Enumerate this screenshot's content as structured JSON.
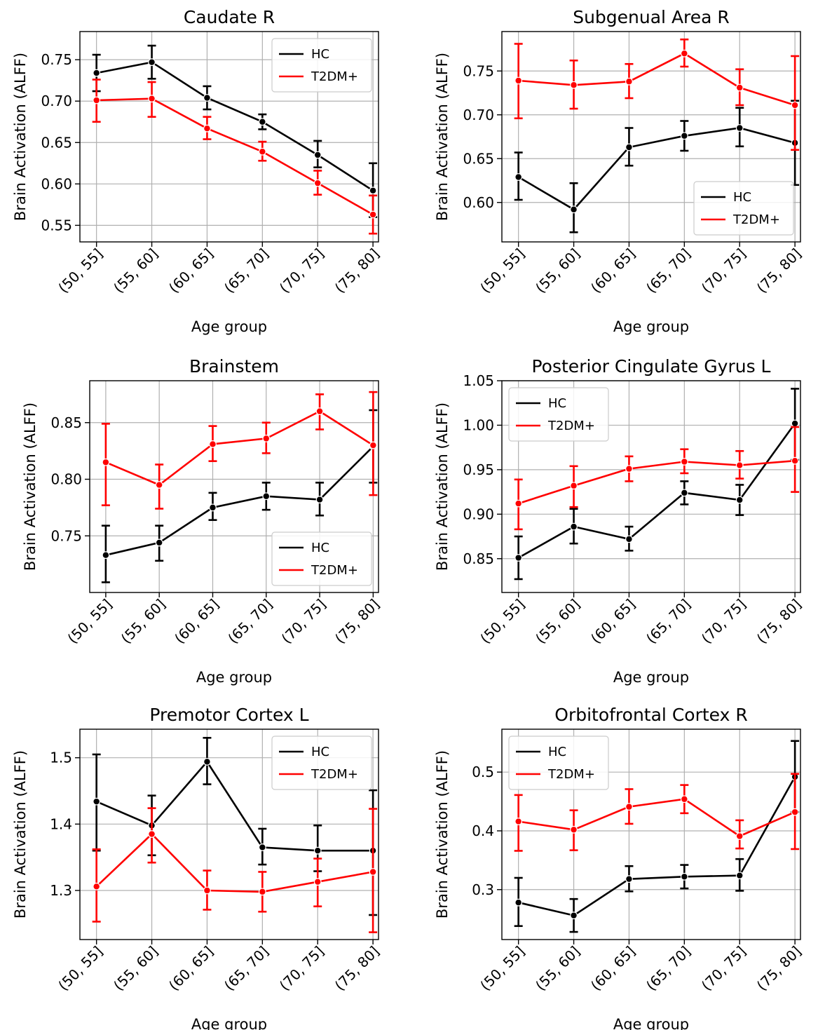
{
  "figure": {
    "xlabel": "Age group",
    "ylabel": "Brain Activation (ALFF)",
    "categories": [
      "(50, 55]",
      "(55, 60]",
      "(60, 65]",
      "(65, 70]",
      "(70, 75]",
      "(75, 80]"
    ],
    "colors": {
      "HC": "#000000",
      "T2DM+": "#ff0000"
    }
  },
  "chart_data": [
    {
      "type": "line",
      "title": "Caudate R",
      "xlabel": "Age group",
      "ylabel": "Brain Activation (ALFF)",
      "categories": [
        "(50, 55]",
        "(55, 60]",
        "(60, 65]",
        "(65, 70]",
        "(70, 75]",
        "(75, 80]"
      ],
      "ylim": [
        0.53,
        0.784
      ],
      "yticks": [
        0.55,
        0.6,
        0.65,
        0.7,
        0.75
      ],
      "ytick_labels": [
        "0.55",
        "0.60",
        "0.65",
        "0.70",
        "0.75"
      ],
      "grid": true,
      "legend_position": "top-right",
      "series": [
        {
          "name": "HC",
          "color": "#000000",
          "values": [
            0.734,
            0.747,
            0.704,
            0.675,
            0.635,
            0.592
          ],
          "err_low": [
            0.712,
            0.727,
            0.69,
            0.666,
            0.62,
            0.56
          ],
          "err_high": [
            0.756,
            0.767,
            0.718,
            0.684,
            0.652,
            0.625
          ]
        },
        {
          "name": "T2DM+",
          "color": "#ff0000",
          "values": [
            0.701,
            0.703,
            0.667,
            0.639,
            0.601,
            0.563
          ],
          "err_low": [
            0.675,
            0.681,
            0.654,
            0.628,
            0.587,
            0.54
          ],
          "err_high": [
            0.726,
            0.723,
            0.681,
            0.651,
            0.616,
            0.586
          ]
        }
      ]
    },
    {
      "type": "line",
      "title": "Subgenual Area R",
      "xlabel": "Age group",
      "ylabel": "Brain Activation (ALFF)",
      "categories": [
        "(50, 55]",
        "(55, 60]",
        "(60, 65]",
        "(65, 70]",
        "(70, 75]",
        "(75, 80]"
      ],
      "ylim": [
        0.555,
        0.795
      ],
      "yticks": [
        0.6,
        0.65,
        0.7,
        0.75
      ],
      "ytick_labels": [
        "0.60",
        "0.65",
        "0.70",
        "0.75"
      ],
      "grid": true,
      "legend_position": "lower-right",
      "series": [
        {
          "name": "HC",
          "color": "#000000",
          "values": [
            0.629,
            0.592,
            0.663,
            0.676,
            0.685,
            0.668
          ],
          "err_low": [
            0.603,
            0.566,
            0.642,
            0.659,
            0.664,
            0.62
          ],
          "err_high": [
            0.657,
            0.622,
            0.685,
            0.693,
            0.708,
            0.716
          ]
        },
        {
          "name": "T2DM+",
          "color": "#ff0000",
          "values": [
            0.739,
            0.734,
            0.738,
            0.77,
            0.731,
            0.711
          ],
          "err_low": [
            0.696,
            0.707,
            0.719,
            0.755,
            0.711,
            0.66
          ],
          "err_high": [
            0.781,
            0.762,
            0.758,
            0.786,
            0.752,
            0.767
          ]
        }
      ]
    },
    {
      "type": "line",
      "title": "Brainstem",
      "xlabel": "Age group",
      "ylabel": "Brain Activation (ALFF)",
      "categories": [
        "(50, 55]",
        "(55, 60]",
        "(60, 65]",
        "(65, 70]",
        "(70, 75]",
        "(75, 80]"
      ],
      "ylim": [
        0.7,
        0.887
      ],
      "yticks": [
        0.75,
        0.8,
        0.85
      ],
      "ytick_labels": [
        "0.75",
        "0.80",
        "0.85"
      ],
      "grid": true,
      "legend_position": "lower-right",
      "series": [
        {
          "name": "HC",
          "color": "#000000",
          "values": [
            0.733,
            0.744,
            0.775,
            0.785,
            0.782,
            0.829
          ],
          "err_low": [
            0.709,
            0.728,
            0.764,
            0.773,
            0.768,
            0.797
          ],
          "err_high": [
            0.759,
            0.759,
            0.788,
            0.797,
            0.797,
            0.861
          ]
        },
        {
          "name": "T2DM+",
          "color": "#ff0000",
          "values": [
            0.815,
            0.795,
            0.831,
            0.836,
            0.86,
            0.83
          ],
          "err_low": [
            0.777,
            0.774,
            0.816,
            0.823,
            0.844,
            0.786
          ],
          "err_high": [
            0.849,
            0.813,
            0.847,
            0.85,
            0.875,
            0.877
          ]
        }
      ]
    },
    {
      "type": "line",
      "title": "Posterior Cingulate Gyrus L",
      "xlabel": "Age group",
      "ylabel": "Brain Activation (ALFF)",
      "categories": [
        "(50, 55]",
        "(55, 60]",
        "(60, 65]",
        "(65, 70]",
        "(70, 75]",
        "(75, 80]"
      ],
      "ylim": [
        0.812,
        1.05
      ],
      "yticks": [
        0.85,
        0.9,
        0.95,
        1.0,
        1.05
      ],
      "ytick_labels": [
        "0.85",
        "0.90",
        "0.95",
        "1.00",
        "1.05"
      ],
      "grid": true,
      "legend_position": "top-left",
      "series": [
        {
          "name": "HC",
          "color": "#000000",
          "values": [
            0.851,
            0.886,
            0.872,
            0.924,
            0.916,
            1.002
          ],
          "err_low": [
            0.827,
            0.867,
            0.859,
            0.911,
            0.899,
            0.961
          ],
          "err_high": [
            0.875,
            0.906,
            0.886,
            0.937,
            0.933,
            1.041
          ]
        },
        {
          "name": "T2DM+",
          "color": "#ff0000",
          "values": [
            0.912,
            0.932,
            0.951,
            0.959,
            0.955,
            0.96
          ],
          "err_low": [
            0.883,
            0.908,
            0.937,
            0.946,
            0.94,
            0.925
          ],
          "err_high": [
            0.939,
            0.954,
            0.965,
            0.973,
            0.971,
            0.998
          ]
        }
      ]
    },
    {
      "type": "line",
      "title": "Premotor Cortex L",
      "xlabel": "Age group",
      "ylabel": "Brain Activation (ALFF)",
      "categories": [
        "(50, 55]",
        "(55, 60]",
        "(60, 65]",
        "(65, 70]",
        "(70, 75]",
        "(75, 80]"
      ],
      "ylim": [
        1.226,
        1.543
      ],
      "yticks": [
        1.3,
        1.4,
        1.5
      ],
      "ytick_labels": [
        "1.3",
        "1.4",
        "1.5"
      ],
      "grid": true,
      "legend_position": "top-right",
      "series": [
        {
          "name": "HC",
          "color": "#000000",
          "values": [
            1.434,
            1.398,
            1.494,
            1.365,
            1.36,
            1.36
          ],
          "err_low": [
            1.36,
            1.353,
            1.46,
            1.339,
            1.329,
            1.263
          ],
          "err_high": [
            1.505,
            1.443,
            1.53,
            1.393,
            1.398,
            1.451
          ]
        },
        {
          "name": "T2DM+",
          "color": "#ff0000",
          "values": [
            1.306,
            1.385,
            1.3,
            1.298,
            1.313,
            1.328
          ],
          "err_low": [
            1.253,
            1.342,
            1.271,
            1.268,
            1.276,
            1.237
          ],
          "err_high": [
            1.362,
            1.424,
            1.33,
            1.328,
            1.348,
            1.423
          ]
        }
      ]
    },
    {
      "type": "line",
      "title": "Orbitofrontal Cortex R",
      "xlabel": "Age group",
      "ylabel": "Brain Activation (ALFF)",
      "categories": [
        "(50, 55]",
        "(55, 60]",
        "(60, 65]",
        "(65, 70]",
        "(70, 75]",
        "(75, 80]"
      ],
      "ylim": [
        0.215,
        0.573
      ],
      "yticks": [
        0.3,
        0.4,
        0.5
      ],
      "ytick_labels": [
        "0.3",
        "0.4",
        "0.5"
      ],
      "grid": true,
      "legend_position": "top-left",
      "series": [
        {
          "name": "HC",
          "color": "#000000",
          "values": [
            0.278,
            0.256,
            0.318,
            0.322,
            0.324,
            0.492
          ],
          "err_low": [
            0.238,
            0.228,
            0.297,
            0.302,
            0.298,
            0.432
          ],
          "err_high": [
            0.32,
            0.284,
            0.34,
            0.342,
            0.352,
            0.553
          ]
        },
        {
          "name": "T2DM+",
          "color": "#ff0000",
          "values": [
            0.416,
            0.402,
            0.441,
            0.454,
            0.391,
            0.432
          ],
          "err_low": [
            0.366,
            0.367,
            0.412,
            0.43,
            0.37,
            0.369
          ],
          "err_high": [
            0.461,
            0.435,
            0.471,
            0.478,
            0.418,
            0.497
          ]
        }
      ]
    }
  ]
}
